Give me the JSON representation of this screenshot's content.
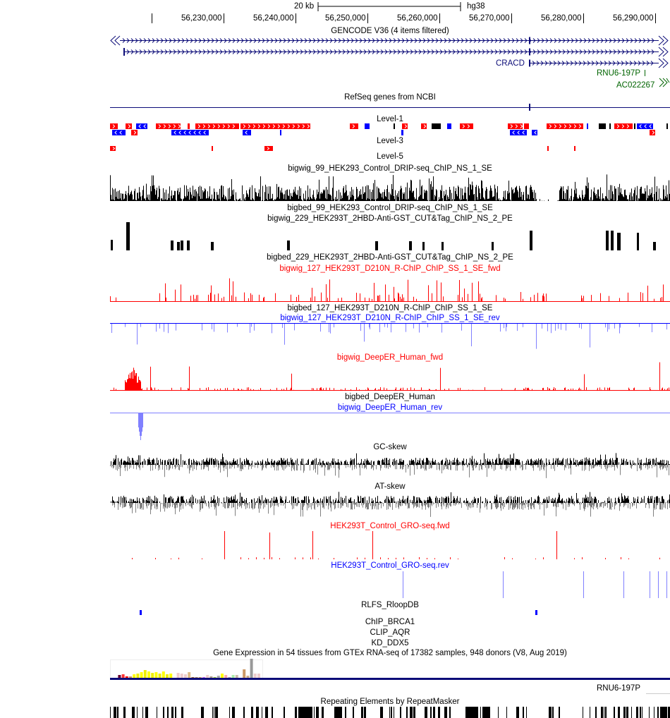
{
  "ruler": {
    "scale_label": "20 kb",
    "assembly": "hg38",
    "ticks": [
      "56,230,000",
      "56,240,000",
      "56,250,000",
      "56,260,000",
      "56,270,000",
      "56,280,000",
      "56,290,000"
    ]
  },
  "genes": {
    "gencode_label": "GENCODE V36 (4 items filtered)",
    "cracd": "CRACD",
    "rnu6": "RNU6-197P",
    "ac": "AC022267",
    "refseq_label": "RefSeq genes from NCBI",
    "gene_color": "#0c0c78",
    "noncoding_color": "#006400"
  },
  "tracks": {
    "level1": "Level-1",
    "level3": "Level-3",
    "level5": "Level-5",
    "bw99": "bigwig_99_HEK293_Control_DRIP-seq_ChIP_NS_1_SE",
    "bb99": "bigbed_99_HEK293_Control_DRIP-seq_ChIP_NS_1_SE",
    "bw229": "bigwig_229_HEK293T_2HBD-Anti-GST_CUT&Tag_ChIP_NS_2_PE",
    "bb229": "bigbed_229_HEK293T_2HBD-Anti-GST_CUT&Tag_ChIP_NS_2_PE",
    "bw127f": "bigwig_127_HEK293T_D210N_R-ChIP_ChIP_SS_1_SE_fwd",
    "bb127": "bigbed_127_HEK293T_D210N_R-ChIP_ChIP_SS_1_SE",
    "bw127r": "bigwig_127_HEK293T_D210N_R-ChIP_ChIP_SS_1_SE_rev",
    "deepf": "bigwig_DeepER_Human_fwd",
    "deepbb": "bigbed_DeepER_Human",
    "deepr": "bigwig_DeepER_Human_rev",
    "gc": "GC-skew",
    "at": "AT-skew",
    "grof": "HEK293T_Control_GRO-seq.fwd",
    "gror": "HEK293T_Control_GRO-seq.rev",
    "rlfs": "RLFS_RloopDB",
    "brca1": "ChIP_BRCA1",
    "aqr": "CLIP_AQR",
    "ddx5": "KD_DDX5",
    "gtex": "Gene Expression in 54 tissues from GTEx RNA-seq of 17382 samples, 948 donors (V8, Aug 2019)",
    "rnu6b": "RNU6-197P",
    "rmsk": "Repeating Elements by RepeatMasker"
  },
  "colors": {
    "fwd": "#ff0000",
    "rev": "#0000ff",
    "rev_signal": "#8080ff",
    "black": "#000000",
    "skew_neg": "#808080"
  }
}
